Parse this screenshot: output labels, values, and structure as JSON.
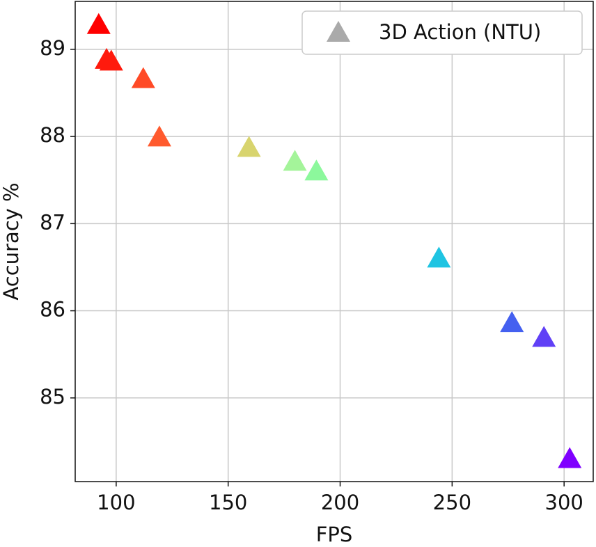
{
  "chart_data": {
    "type": "scatter",
    "x_label": "FPS",
    "y_label": "Accuracy %",
    "xlim": [
      81.7,
      313.0
    ],
    "ylim": [
      84.04,
      89.55
    ],
    "xticks": [
      100,
      150,
      200,
      250,
      300
    ],
    "yticks": [
      85,
      86,
      87,
      88,
      89
    ],
    "grid": true,
    "legend": "upper right",
    "marker": "triangle",
    "series": [
      {
        "name": "3D Action (NTU)",
        "color": "#aaaaaa",
        "x": [
          92.2,
          95.7,
          97.8,
          112.1,
          119.3,
          159.3,
          179.8,
          189.4,
          244.1,
          276.7,
          291.0,
          302.5
        ],
        "values": [
          89.28,
          88.88,
          88.86,
          88.66,
          87.99,
          87.87,
          87.71,
          87.6,
          86.6,
          85.86,
          85.69,
          84.3
        ],
        "point_colors": [
          "#ff0000",
          "#ff1a0d",
          "#ff1a0d",
          "#ff4a26",
          "#ff5a2e",
          "#d8d46e",
          "#a4f49a",
          "#8cf89c",
          "#1fc4e2",
          "#4460f0",
          "#6040f6",
          "#7f00ff"
        ]
      }
    ]
  }
}
